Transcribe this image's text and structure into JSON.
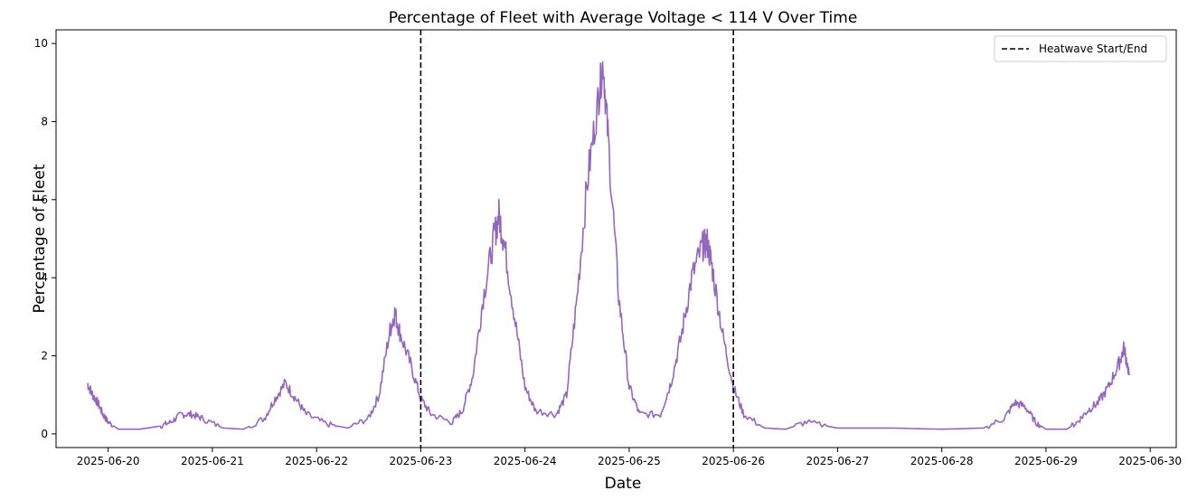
{
  "chart_data": {
    "type": "line",
    "title": "Percentage of Fleet with Average Voltage < 114 V Over Time",
    "xlabel": "Date",
    "ylabel": "Percentage of Fleet",
    "x_range_days": [
      -0.5,
      10.25
    ],
    "ylim": [
      -0.35,
      10.35
    ],
    "x_ticks": [
      "2025-06-20",
      "2025-06-21",
      "2025-06-22",
      "2025-06-23",
      "2025-06-24",
      "2025-06-25",
      "2025-06-26",
      "2025-06-27",
      "2025-06-28",
      "2025-06-29",
      "2025-06-30"
    ],
    "y_ticks": [
      0,
      2,
      4,
      6,
      8,
      10
    ],
    "grid": false,
    "legend": {
      "location": "top-right",
      "entries": [
        "Heatwave Start/End"
      ]
    },
    "heatwave_lines": [
      {
        "date": "2025-06-23",
        "day_offset": 3
      },
      {
        "date": "2025-06-26",
        "day_offset": 6
      }
    ],
    "series": [
      {
        "name": "Percentage of Fleet",
        "color": "#9467bd",
        "x_unit": "days since 2025-06-20",
        "x": [
          -0.2,
          -0.15,
          -0.1,
          -0.05,
          0.0,
          0.1,
          0.3,
          0.5,
          0.6,
          0.7,
          0.8,
          0.9,
          1.1,
          1.3,
          1.5,
          1.6,
          1.7,
          1.8,
          1.9,
          2.1,
          2.3,
          2.5,
          2.6,
          2.7,
          2.75,
          2.8,
          2.9,
          3.0,
          3.1,
          3.3,
          3.4,
          3.5,
          3.6,
          3.7,
          3.75,
          3.8,
          3.9,
          4.0,
          4.1,
          4.3,
          4.4,
          4.5,
          4.6,
          4.7,
          4.75,
          4.8,
          4.9,
          5.0,
          5.1,
          5.3,
          5.4,
          5.5,
          5.6,
          5.7,
          5.75,
          5.8,
          5.9,
          6.0,
          6.1,
          6.3,
          6.5,
          6.7,
          7.0,
          7.5,
          8.0,
          8.4,
          8.6,
          8.7,
          8.8,
          8.9,
          9.0,
          9.2,
          9.3,
          9.4,
          9.5,
          9.6,
          9.7,
          9.75,
          9.8
        ],
        "values": [
          1.3,
          1.0,
          0.8,
          0.5,
          0.3,
          0.12,
          0.12,
          0.2,
          0.3,
          0.5,
          0.5,
          0.4,
          0.15,
          0.12,
          0.4,
          0.9,
          1.3,
          0.9,
          0.5,
          0.25,
          0.15,
          0.4,
          1.0,
          2.6,
          3.1,
          2.6,
          1.8,
          0.9,
          0.5,
          0.3,
          0.6,
          1.5,
          3.5,
          5.0,
          5.6,
          4.9,
          3.0,
          1.2,
          0.6,
          0.5,
          1.0,
          3.5,
          6.5,
          8.5,
          9.5,
          7.5,
          3.5,
          1.2,
          0.5,
          0.5,
          1.3,
          2.5,
          4.0,
          4.8,
          4.9,
          4.2,
          2.5,
          1.2,
          0.5,
          0.15,
          0.12,
          0.3,
          0.15,
          0.15,
          0.12,
          0.15,
          0.4,
          0.8,
          0.7,
          0.3,
          0.12,
          0.12,
          0.3,
          0.6,
          0.8,
          1.2,
          1.8,
          2.2,
          1.5
        ]
      }
    ]
  }
}
